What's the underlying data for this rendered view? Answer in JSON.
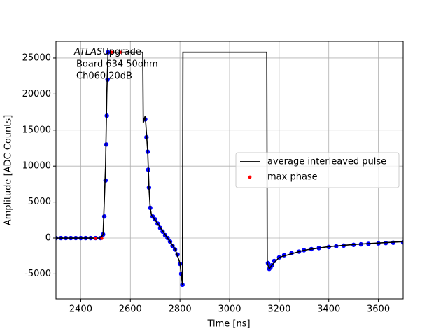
{
  "chart_data": {
    "type": "line",
    "xlabel": "Time [ns]",
    "ylabel": "Amplitude [ADC Counts]",
    "annotation": {
      "italic": "ATLAS",
      "rest": "Upgrade",
      "lines": [
        "Board 634 50ohm",
        "Ch060 20dB"
      ]
    },
    "xlim": [
      2300,
      3700
    ],
    "xticks": [
      2400,
      2600,
      2800,
      3000,
      3200,
      3400,
      3600
    ],
    "ylim": [
      -8460,
      27330
    ],
    "yticks": [
      -5000,
      0,
      5000,
      10000,
      15000,
      20000,
      25000
    ],
    "grid": true,
    "legend": "center right",
    "series": [
      {
        "kind": "scatter",
        "color": "#0000ff",
        "x": [
          2300,
          2320,
          2340,
          2360,
          2380,
          2400,
          2420,
          2440,
          2460,
          2480,
          2490,
          2495,
          2500,
          2503,
          2505,
          2508,
          2510,
          2660,
          2665,
          2670,
          2672,
          2675,
          2680,
          2690,
          2700,
          2710,
          2720,
          2730,
          2740,
          2750,
          2760,
          2770,
          2780,
          2790,
          2800,
          2805,
          2810,
          3155,
          3160,
          3165,
          3170,
          3180,
          3200,
          3220,
          3250,
          3280,
          3300,
          3330,
          3360,
          3400,
          3430,
          3460,
          3500,
          3530,
          3560,
          3600,
          3630,
          3660,
          3700
        ],
        "values": [
          0,
          0,
          0,
          0,
          0,
          0,
          0,
          0,
          0,
          0,
          500,
          3000,
          8000,
          13000,
          17000,
          22000,
          25800,
          16500,
          14000,
          12000,
          9500,
          7000,
          4200,
          3000,
          2600,
          2000,
          1400,
          900,
          400,
          0,
          -500,
          -1100,
          -1600,
          -2300,
          -3600,
          -5000,
          -6500,
          -3500,
          -4300,
          -4100,
          -3800,
          -3200,
          -2700,
          -2400,
          -2100,
          -1900,
          -1700,
          -1550,
          -1400,
          -1250,
          -1150,
          -1050,
          -950,
          -880,
          -820,
          -750,
          -700,
          -650,
          -600
        ]
      },
      {
        "kind": "line",
        "name": "average interleaved pulse",
        "color": "#000000",
        "x": [
          2300,
          2480,
          2490,
          2500,
          2505,
          2510,
          2650,
          2652,
          2660,
          2670,
          2675,
          2680,
          2685,
          2700,
          2720,
          2750,
          2780,
          2800,
          2810,
          2812,
          3150,
          3152,
          3160,
          3170,
          3200,
          3300,
          3400,
          3500,
          3600,
          3700
        ],
        "values": [
          0,
          0,
          500,
          10000,
          20000,
          25800,
          25800,
          16000,
          17000,
          12000,
          7000,
          4200,
          3200,
          2500,
          1500,
          0,
          -1500,
          -3500,
          -6500,
          25800,
          25800,
          -3500,
          -4300,
          -3800,
          -2700,
          -1700,
          -1200,
          -900,
          -700,
          -500
        ]
      },
      {
        "kind": "scatter",
        "name": "max phase",
        "color": "#ff0000",
        "x": [
          2460,
          2485,
          2525,
          2560
        ],
        "values": [
          -50,
          -50,
          25800,
          25800
        ]
      }
    ]
  }
}
